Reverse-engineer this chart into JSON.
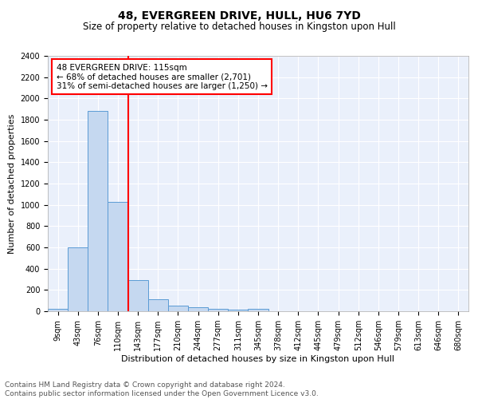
{
  "title1": "48, EVERGREEN DRIVE, HULL, HU6 7YD",
  "title2": "Size of property relative to detached houses in Kingston upon Hull",
  "xlabel": "Distribution of detached houses by size in Kingston upon Hull",
  "ylabel": "Number of detached properties",
  "bar_labels": [
    "9sqm",
    "43sqm",
    "76sqm",
    "110sqm",
    "143sqm",
    "177sqm",
    "210sqm",
    "244sqm",
    "277sqm",
    "311sqm",
    "345sqm",
    "378sqm",
    "412sqm",
    "445sqm",
    "479sqm",
    "512sqm",
    "546sqm",
    "579sqm",
    "613sqm",
    "646sqm",
    "680sqm"
  ],
  "bar_values": [
    20,
    600,
    1880,
    1030,
    290,
    110,
    50,
    35,
    20,
    15,
    20,
    0,
    0,
    0,
    0,
    0,
    0,
    0,
    0,
    0,
    0
  ],
  "bar_color": "#c5d8f0",
  "bar_edge_color": "#5b9bd5",
  "vline_color": "red",
  "annotation_text": "48 EVERGREEN DRIVE: 115sqm\n← 68% of detached houses are smaller (2,701)\n31% of semi-detached houses are larger (1,250) →",
  "annotation_box_color": "white",
  "annotation_box_edge_color": "red",
  "ylim": [
    0,
    2400
  ],
  "yticks": [
    0,
    200,
    400,
    600,
    800,
    1000,
    1200,
    1400,
    1600,
    1800,
    2000,
    2200,
    2400
  ],
  "footnote": "Contains HM Land Registry data © Crown copyright and database right 2024.\nContains public sector information licensed under the Open Government Licence v3.0.",
  "bg_color": "#eaf0fb",
  "grid_color": "#ffffff",
  "title1_fontsize": 10,
  "title2_fontsize": 8.5,
  "xlabel_fontsize": 8,
  "ylabel_fontsize": 8,
  "tick_fontsize": 7,
  "annotation_fontsize": 7.5,
  "footnote_fontsize": 6.5
}
